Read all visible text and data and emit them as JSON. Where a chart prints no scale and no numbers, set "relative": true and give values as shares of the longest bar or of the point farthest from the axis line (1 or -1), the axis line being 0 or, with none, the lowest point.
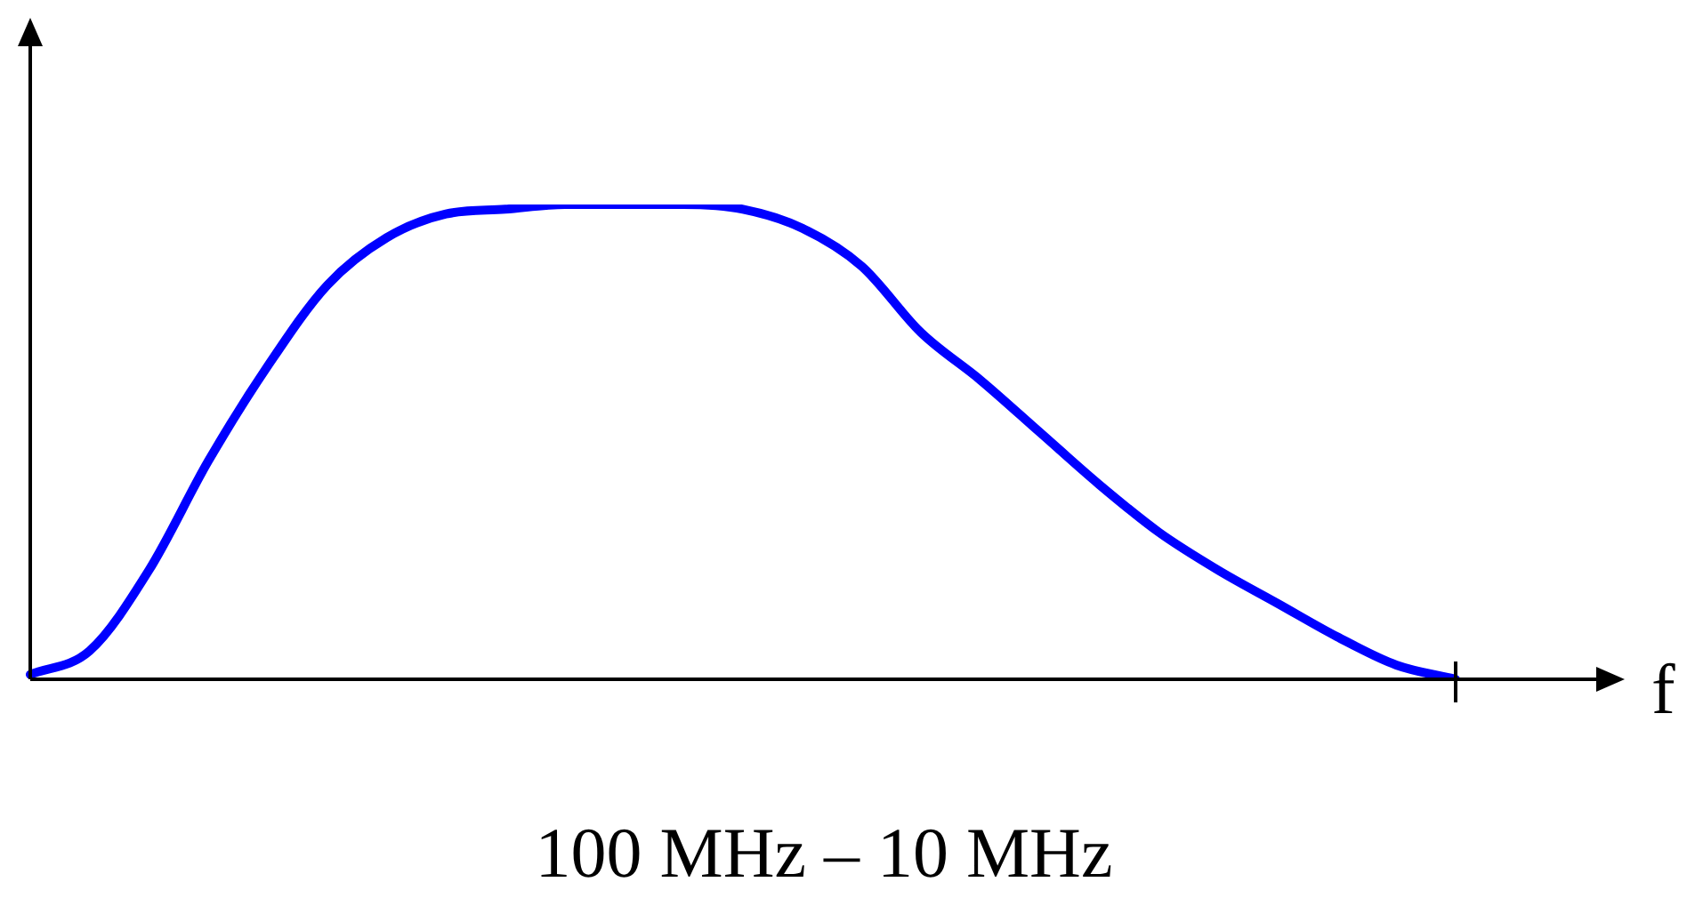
{
  "chart_data": {
    "type": "line",
    "relative": true,
    "xlabel": "f",
    "annotations": [
      "100 MHz – 10 MHz"
    ],
    "marker": "none",
    "categories": [
      null,
      null,
      null,
      null,
      null,
      null,
      null,
      null,
      null,
      null,
      null,
      null,
      null,
      null,
      null,
      null,
      null,
      null,
      null,
      null,
      null,
      null,
      null,
      null,
      null
    ],
    "series": [
      {
        "color": "#0000ff",
        "values": [
          0.01,
          0.06,
          0.23,
          0.46,
          0.66,
          0.83,
          0.93,
          0.98,
          0.99,
          1,
          1,
          1,
          0.99,
          0.95,
          0.87,
          0.73,
          0.63,
          0.52,
          0.41,
          0.31,
          0.23,
          0.16,
          0.09,
          0.03,
          0
        ]
      }
    ]
  }
}
